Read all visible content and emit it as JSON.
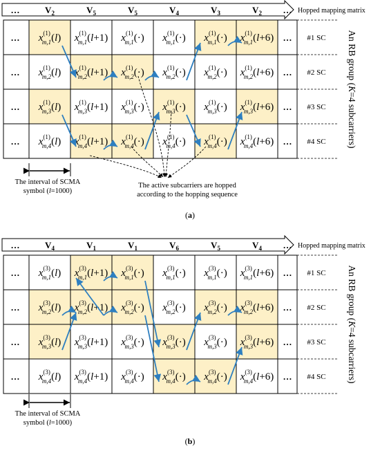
{
  "colors": {
    "highlight": "#fdf0c7",
    "arrow": "#2e7fc0",
    "grid": "#000000"
  },
  "header_dots": "…",
  "row_dots": "…",
  "hopped_label": "Hopped mapping matrix",
  "group_label_prefix": "An RB group (",
  "group_label_k": "K",
  "group_label_suffix": "=4 subcarriers)",
  "sc_labels": [
    "#1 SC",
    "#2 SC",
    "#3 SC",
    "#4 SC"
  ],
  "interval_label_line1": "The interval of SCMA",
  "interval_label_line2_pre": "symbol (",
  "interval_label_l": "l",
  "interval_label_line2_post": "=1000)",
  "annotation_line1": "The active subcarriers are hopped",
  "annotation_line2": "according to the hopping sequence",
  "panels": [
    {
      "caption_pre": "(",
      "caption_letter": "a",
      "caption_post": ")",
      "user": "1",
      "headers": [
        {
          "base": "V",
          "sub": "2"
        },
        {
          "base": "V",
          "sub": "5"
        },
        {
          "base": "V",
          "sub": "5"
        },
        {
          "base": "V",
          "sub": "4"
        },
        {
          "base": "V",
          "sub": "3"
        },
        {
          "base": "V",
          "sub": "2"
        }
      ],
      "rows": [
        {
          "index": "1",
          "args": [
            "(l)",
            "(l+1)",
            "(·)",
            "(·)",
            "(·)",
            "(l+6)"
          ],
          "highlight": [
            true,
            false,
            false,
            false,
            true,
            true
          ]
        },
        {
          "index": "2",
          "args": [
            "(l)",
            "(l+1)",
            "(·)",
            "(·)",
            "(·)",
            "(l+6)"
          ],
          "highlight": [
            false,
            true,
            true,
            false,
            false,
            false
          ]
        },
        {
          "index": "3",
          "args": [
            "(l)",
            "(l+1)",
            "(·)",
            "(·)",
            "(·)",
            "(l+6)"
          ],
          "highlight": [
            true,
            false,
            false,
            true,
            false,
            true
          ]
        },
        {
          "index": "4",
          "args": [
            "(l)",
            "(l+1)",
            "(·)",
            "(·)",
            "(·)",
            "(l+6)"
          ],
          "highlight": [
            false,
            true,
            true,
            false,
            true,
            false
          ]
        }
      ]
    },
    {
      "caption_pre": "(",
      "caption_letter": "b",
      "caption_post": ")",
      "user": "3",
      "headers": [
        {
          "base": "V",
          "sub": "4"
        },
        {
          "base": "V",
          "sub": "1"
        },
        {
          "base": "V",
          "sub": "1"
        },
        {
          "base": "V",
          "sub": "6"
        },
        {
          "base": "V",
          "sub": "5"
        },
        {
          "base": "V",
          "sub": "4"
        }
      ],
      "rows": [
        {
          "index": "1",
          "args": [
            "(l)",
            "(l+1)",
            "(·)",
            "(·)",
            "(·)",
            "(l+6)"
          ],
          "highlight": [
            false,
            true,
            true,
            false,
            false,
            false
          ]
        },
        {
          "index": "2",
          "args": [
            "(l)",
            "(l+1)",
            "(·)",
            "(·)",
            "(·)",
            "(l+6)"
          ],
          "highlight": [
            true,
            true,
            true,
            false,
            true,
            true
          ]
        },
        {
          "index": "3",
          "args": [
            "(l)",
            "(l+1)",
            "(·)",
            "(·)",
            "(·)",
            "(l+6)"
          ],
          "highlight": [
            true,
            false,
            false,
            true,
            false,
            true
          ]
        },
        {
          "index": "4",
          "args": [
            "(l)",
            "(l+1)",
            "(·)",
            "(·)",
            "(·)",
            "(l+6)"
          ],
          "highlight": [
            false,
            false,
            false,
            true,
            true,
            false
          ]
        }
      ]
    }
  ]
}
